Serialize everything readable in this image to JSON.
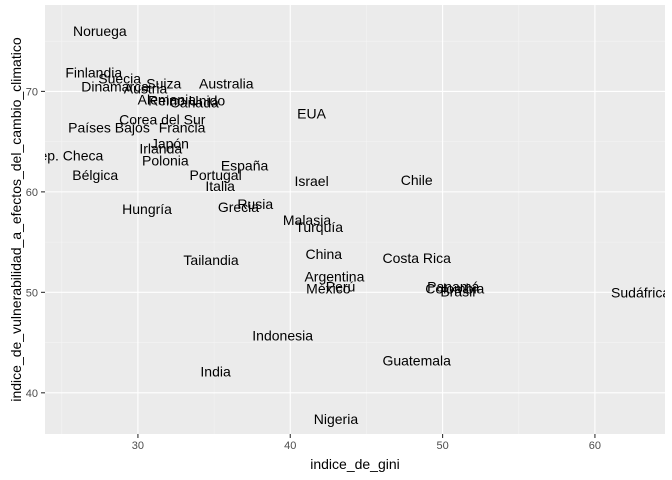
{
  "chart_data": {
    "type": "scatter",
    "xlabel": "indice_de_gini",
    "ylabel": "indice_de_vulnerabilidad_a_efectos_del_cambio_climatico",
    "xlim": [
      23.9,
      64.6
    ],
    "ylim": [
      35.9,
      78.6
    ],
    "x_ticks": [
      30,
      40,
      50,
      60
    ],
    "y_ticks": [
      40,
      50,
      60,
      70
    ],
    "grid": true,
    "legend": "none",
    "points": [
      {
        "label": "Noruega",
        "x": 27.5,
        "y": 76.0
      },
      {
        "label": "Finlandia",
        "x": 27.1,
        "y": 71.9
      },
      {
        "label": "Suecia",
        "x": 28.8,
        "y": 71.3
      },
      {
        "label": "Dinamarca",
        "x": 28.5,
        "y": 70.5
      },
      {
        "label": "Suiza",
        "x": 31.7,
        "y": 70.8
      },
      {
        "label": "Australia",
        "x": 35.8,
        "y": 70.8
      },
      {
        "label": "Austria",
        "x": 30.5,
        "y": 70.3
      },
      {
        "label": "Alemania",
        "x": 31.9,
        "y": 69.2
      },
      {
        "label": "Reino Unido",
        "x": 33.2,
        "y": 69.1
      },
      {
        "label": "Canadá",
        "x": 33.7,
        "y": 68.9
      },
      {
        "label": "EUA",
        "x": 41.4,
        "y": 67.8
      },
      {
        "label": "Corea del Sur",
        "x": 31.6,
        "y": 67.2
      },
      {
        "label": "Países Bajos",
        "x": 28.1,
        "y": 66.4
      },
      {
        "label": "Francia",
        "x": 32.9,
        "y": 66.4
      },
      {
        "label": "Japón",
        "x": 32.1,
        "y": 64.8
      },
      {
        "label": "Irlanda",
        "x": 31.5,
        "y": 64.3
      },
      {
        "label": "Rep. Checa",
        "x": 25.3,
        "y": 63.6
      },
      {
        "label": "Polonia",
        "x": 31.8,
        "y": 63.1
      },
      {
        "label": "España",
        "x": 37.0,
        "y": 62.6
      },
      {
        "label": "Portugal",
        "x": 35.1,
        "y": 61.7
      },
      {
        "label": "Bélgica",
        "x": 27.2,
        "y": 61.7
      },
      {
        "label": "Israel",
        "x": 41.4,
        "y": 61.1
      },
      {
        "label": "Chile",
        "x": 48.3,
        "y": 61.2
      },
      {
        "label": "Italia",
        "x": 35.4,
        "y": 60.6
      },
      {
        "label": "Rusia",
        "x": 37.7,
        "y": 58.8
      },
      {
        "label": "Hungría",
        "x": 30.6,
        "y": 58.3
      },
      {
        "label": "Grecia",
        "x": 36.6,
        "y": 58.5
      },
      {
        "label": "Malasia",
        "x": 41.1,
        "y": 57.2
      },
      {
        "label": "Turquía",
        "x": 41.9,
        "y": 56.5
      },
      {
        "label": "China",
        "x": 42.2,
        "y": 53.8
      },
      {
        "label": "Costa Rica",
        "x": 48.3,
        "y": 53.4
      },
      {
        "label": "Tailandia",
        "x": 34.8,
        "y": 53.2
      },
      {
        "label": "Argentina",
        "x": 42.9,
        "y": 51.6
      },
      {
        "label": "Panamá",
        "x": 50.7,
        "y": 50.6
      },
      {
        "label": "Perú",
        "x": 43.3,
        "y": 50.6
      },
      {
        "label": "México",
        "x": 42.5,
        "y": 50.4
      },
      {
        "label": "Colombia",
        "x": 50.8,
        "y": 50.4
      },
      {
        "label": "Brasil",
        "x": 51.0,
        "y": 50.1
      },
      {
        "label": "Sudáfrica",
        "x": 63.0,
        "y": 50.0
      },
      {
        "label": "Indonesia",
        "x": 39.5,
        "y": 45.7
      },
      {
        "label": "Guatemala",
        "x": 48.3,
        "y": 43.2
      },
      {
        "label": "India",
        "x": 35.1,
        "y": 42.1
      },
      {
        "label": "Nigeria",
        "x": 43.0,
        "y": 37.4
      }
    ]
  }
}
